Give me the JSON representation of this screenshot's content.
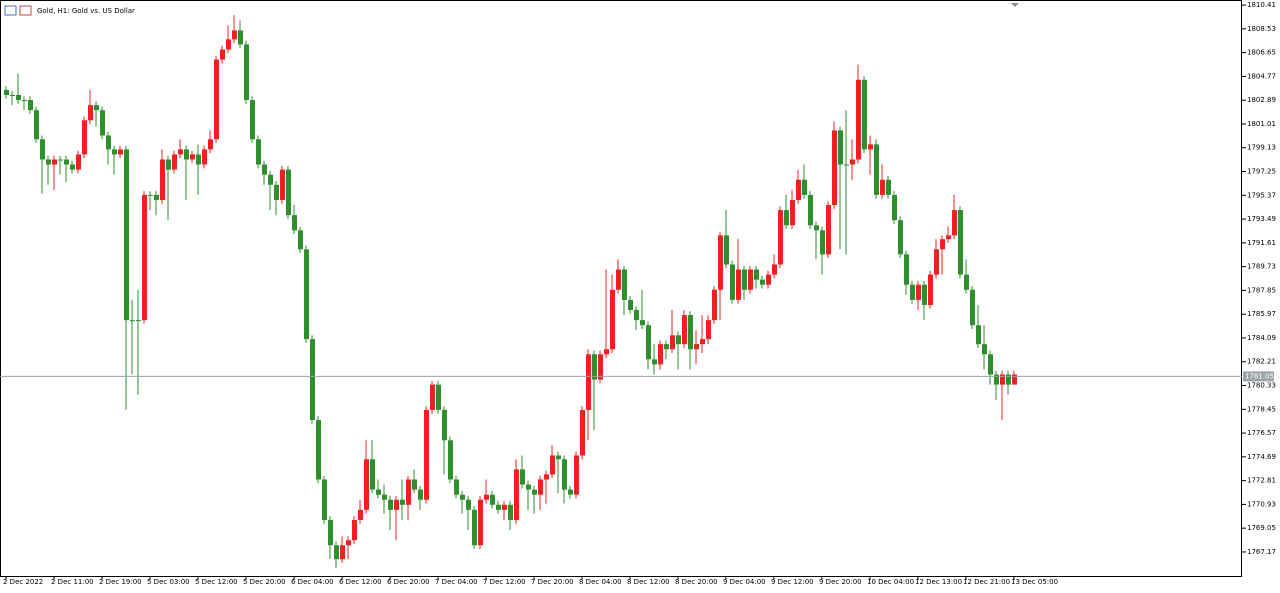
{
  "chart_data": {
    "type": "candlestick",
    "title": "Gold, H1:  Gold vs. US Dollar",
    "up_color": "#ef2020",
    "down_color": "#2f8f2f",
    "grid": false,
    "last_price": 1781.05,
    "ylim": [
      1765.27,
      1810.81
    ],
    "yticks": [
      1810.41,
      1808.53,
      1806.65,
      1804.77,
      1802.89,
      1801.01,
      1799.13,
      1797.25,
      1795.37,
      1793.49,
      1791.61,
      1789.73,
      1787.85,
      1785.97,
      1784.09,
      1782.21,
      1780.33,
      1778.45,
      1776.57,
      1774.69,
      1772.81,
      1770.93,
      1769.05,
      1767.17
    ],
    "categories": [
      "2 Dec 2022",
      null,
      null,
      null,
      null,
      null,
      null,
      null,
      "2 Dec 11:00",
      null,
      null,
      null,
      null,
      null,
      null,
      null,
      "2 Dec 19:00",
      null,
      null,
      null,
      null,
      null,
      null,
      null,
      "5 Dec 03:00",
      null,
      null,
      null,
      null,
      null,
      null,
      null,
      "5 Dec 12:00",
      null,
      null,
      null,
      null,
      null,
      null,
      null,
      "5 Dec 20:00",
      null,
      null,
      null,
      null,
      null,
      null,
      null,
      "6 Dec 04:00",
      null,
      null,
      null,
      null,
      null,
      null,
      null,
      "6 Dec 12:00",
      null,
      null,
      null,
      null,
      null,
      null,
      null,
      "6 Dec 20:00",
      null,
      null,
      null,
      null,
      null,
      null,
      null,
      "7 Dec 04:00",
      null,
      null,
      null,
      null,
      null,
      null,
      null,
      "7 Dec 12:00",
      null,
      null,
      null,
      null,
      null,
      null,
      null,
      "7 Dec 20:00",
      null,
      null,
      null,
      null,
      null,
      null,
      null,
      "8 Dec 04:00",
      null,
      null,
      null,
      null,
      null,
      null,
      null,
      "8 Dec 12:00",
      null,
      null,
      null,
      null,
      null,
      null,
      null,
      "8 Dec 20:00",
      null,
      null,
      null,
      null,
      null,
      null,
      null,
      "9 Dec 04:00",
      null,
      null,
      null,
      null,
      null,
      null,
      null,
      "9 Dec 12:00",
      null,
      null,
      null,
      null,
      null,
      null,
      null,
      "9 Dec 20:00",
      null,
      null,
      null,
      null,
      null,
      null,
      null,
      "10 Dec 04:00",
      null,
      null,
      null,
      null,
      null,
      null,
      null,
      "12 Dec 13:00",
      null,
      null,
      null,
      null,
      null,
      null,
      null,
      "12 Dec 21:00",
      null,
      null,
      null,
      null,
      null,
      null,
      null,
      "13 Dec 05:00"
    ],
    "open": [
      1803.7,
      1803.3,
      1803.3,
      1802.9,
      1802.9,
      1802.1,
      1799.8,
      1798.2,
      1797.8,
      1798.2,
      1798.2,
      1797.8,
      1797.4,
      1798.6,
      1801.3,
      1802.5,
      1802.1,
      1800.1,
      1799.0,
      1798.6,
      1799.0,
      1785.5,
      1785.5,
      1785.5,
      1795.4,
      1795.4,
      1795.0,
      1798.2,
      1797.4,
      1798.6,
      1799.0,
      1798.2,
      1798.6,
      1797.8,
      1799.0,
      1799.8,
      1806.1,
      1806.9,
      1807.7,
      1808.4,
      1807.3,
      1802.9,
      1799.8,
      1797.8,
      1797.0,
      1796.2,
      1795.0,
      1797.4,
      1793.8,
      1792.6,
      1791.1,
      1784.0,
      1777.6,
      1772.9,
      1769.7,
      1767.7,
      1766.6,
      1767.7,
      1768.1,
      1769.7,
      1770.5,
      1774.5,
      1772.1,
      1771.7,
      1771.3,
      1770.5,
      1771.3,
      1770.9,
      1772.9,
      1772.1,
      1771.3,
      1778.4,
      1780.4,
      1778.4,
      1776.0,
      1772.9,
      1771.7,
      1771.3,
      1770.5,
      1767.7,
      1771.3,
      1771.7,
      1770.9,
      1770.5,
      1770.9,
      1769.7,
      1773.7,
      1772.5,
      1772.1,
      1771.7,
      1772.9,
      1773.3,
      1774.8,
      1774.5,
      1772.1,
      1771.7,
      1774.8,
      1778.4,
      1782.8,
      1780.8,
      1782.8,
      1783.2,
      1787.9,
      1789.5,
      1787.1,
      1786.3,
      1785.5,
      1785.1,
      1782.4,
      1782.0,
      1783.6,
      1783.2,
      1784.3,
      1783.6,
      1785.9,
      1783.2,
      1783.6,
      1784.0,
      1785.5,
      1787.9,
      1792.2,
      1789.9,
      1787.1,
      1789.5,
      1787.9,
      1789.5,
      1788.7,
      1788.3,
      1789.1,
      1789.9,
      1794.2,
      1793.0,
      1795.0,
      1796.6,
      1795.4,
      1793.0,
      1792.6,
      1790.7,
      1794.6,
      1800.5,
      1797.8,
      1797.8,
      1798.2,
      1804.5,
      1799.0,
      1799.4,
      1795.4,
      1796.6,
      1795.4,
      1793.4,
      1790.7,
      1788.3,
      1787.1,
      1788.3,
      1786.7,
      1789.1,
      1791.1,
      1791.9,
      1792.2,
      1794.2,
      1789.1,
      1787.9,
      1785.1,
      1783.6,
      1782.8,
      1781.2,
      1780.4,
      1781.2,
      1780.4
    ],
    "high": [
      1804.0,
      1803.6,
      1805.0,
      1803.2,
      1803.2,
      1802.4,
      1800.1,
      1798.5,
      1798.5,
      1798.5,
      1798.5,
      1798.1,
      1798.9,
      1801.6,
      1803.7,
      1802.8,
      1802.4,
      1800.4,
      1799.3,
      1799.3,
      1799.3,
      1787.1,
      1787.9,
      1795.7,
      1795.7,
      1795.7,
      1799.0,
      1798.5,
      1798.9,
      1799.8,
      1799.3,
      1798.9,
      1799.4,
      1799.3,
      1800.5,
      1806.4,
      1807.2,
      1808.8,
      1809.6,
      1809.2,
      1807.6,
      1803.2,
      1800.1,
      1798.1,
      1797.3,
      1796.5,
      1797.7,
      1797.7,
      1794.6,
      1792.9,
      1791.4,
      1784.3,
      1777.9,
      1773.2,
      1770.0,
      1768.0,
      1768.4,
      1768.4,
      1770.0,
      1771.3,
      1776.0,
      1776.0,
      1772.9,
      1772.5,
      1771.6,
      1771.6,
      1772.9,
      1773.2,
      1773.7,
      1772.4,
      1778.7,
      1780.7,
      1780.7,
      1778.7,
      1776.3,
      1773.2,
      1772.0,
      1771.6,
      1770.8,
      1771.6,
      1772.9,
      1772.0,
      1771.2,
      1771.2,
      1771.2,
      1774.5,
      1774.8,
      1772.8,
      1772.4,
      1773.2,
      1773.6,
      1775.6,
      1775.1,
      1774.8,
      1772.4,
      1775.1,
      1778.7,
      1783.2,
      1783.1,
      1783.1,
      1789.5,
      1789.1,
      1790.3,
      1789.8,
      1787.4,
      1786.6,
      1787.9,
      1785.4,
      1783.6,
      1783.9,
      1783.9,
      1786.3,
      1784.6,
      1786.3,
      1786.2,
      1784.7,
      1785.9,
      1785.9,
      1788.2,
      1792.5,
      1794.2,
      1790.2,
      1791.9,
      1789.8,
      1789.8,
      1789.8,
      1789.0,
      1789.4,
      1790.7,
      1794.5,
      1795.4,
      1795.8,
      1797.4,
      1797.8,
      1795.7,
      1793.3,
      1792.9,
      1794.9,
      1801.2,
      1800.8,
      1802.1,
      1799.8,
      1805.7,
      1804.8,
      1800.1,
      1799.8,
      1797.8,
      1796.9,
      1795.7,
      1793.7,
      1791.0,
      1788.6,
      1788.6,
      1788.6,
      1789.4,
      1791.9,
      1792.2,
      1792.9,
      1795.4,
      1794.5,
      1790.3,
      1788.2,
      1786.7,
      1785.1,
      1783.1,
      1781.5,
      1781.5,
      1781.5,
      1781.5
    ],
    "low": [
      1803.0,
      1802.5,
      1802.6,
      1802.1,
      1801.8,
      1799.5,
      1795.5,
      1796.2,
      1795.8,
      1797.0,
      1796.4,
      1797.1,
      1797.1,
      1798.3,
      1801.0,
      1800.8,
      1799.8,
      1797.8,
      1797.0,
      1798.3,
      1778.4,
      1781.2,
      1779.6,
      1785.2,
      1794.2,
      1793.8,
      1794.7,
      1793.4,
      1797.1,
      1798.3,
      1795.0,
      1797.9,
      1795.4,
      1797.5,
      1798.7,
      1799.5,
      1805.8,
      1806.6,
      1807.4,
      1807.0,
      1802.6,
      1799.5,
      1797.5,
      1796.2,
      1794.2,
      1793.8,
      1794.7,
      1793.5,
      1792.3,
      1790.8,
      1783.7,
      1777.3,
      1772.6,
      1769.4,
      1766.6,
      1765.9,
      1766.3,
      1766.6,
      1767.8,
      1769.4,
      1770.2,
      1771.8,
      1771.4,
      1770.2,
      1768.9,
      1768.1,
      1769.7,
      1769.7,
      1771.8,
      1770.5,
      1771.0,
      1778.1,
      1778.1,
      1773.3,
      1772.6,
      1771.4,
      1770.2,
      1768.9,
      1767.4,
      1767.4,
      1771.0,
      1770.6,
      1770.2,
      1769.7,
      1768.9,
      1769.4,
      1772.2,
      1770.5,
      1770.2,
      1770.5,
      1771.0,
      1773.0,
      1771.8,
      1771.0,
      1771.4,
      1771.4,
      1774.5,
      1776.0,
      1776.8,
      1780.5,
      1782.5,
      1782.9,
      1787.6,
      1785.9,
      1786.0,
      1784.7,
      1784.8,
      1781.6,
      1781.2,
      1781.6,
      1782.4,
      1782.9,
      1781.6,
      1783.3,
      1781.6,
      1782.0,
      1782.9,
      1783.6,
      1785.2,
      1785.5,
      1789.6,
      1786.8,
      1786.8,
      1787.1,
      1787.6,
      1788.0,
      1788.0,
      1788.0,
      1788.8,
      1789.6,
      1792.7,
      1792.7,
      1794.7,
      1795.1,
      1792.7,
      1790.3,
      1789.1,
      1790.4,
      1794.3,
      1791.1,
      1790.7,
      1796.6,
      1797.9,
      1798.7,
      1797.0,
      1795.1,
      1795.1,
      1795.1,
      1793.1,
      1790.4,
      1787.5,
      1786.8,
      1786.3,
      1785.5,
      1786.4,
      1788.8,
      1789.1,
      1791.6,
      1791.9,
      1788.8,
      1787.6,
      1784.8,
      1783.3,
      1781.6,
      1780.4,
      1779.2,
      1777.6,
      1779.6,
      1780.7
    ],
    "close": [
      1803.3,
      1803.3,
      1802.9,
      1802.9,
      1802.1,
      1799.8,
      1798.2,
      1797.8,
      1798.2,
      1798.2,
      1797.8,
      1797.4,
      1798.6,
      1801.3,
      1802.5,
      1802.1,
      1800.1,
      1799.0,
      1798.6,
      1799.0,
      1785.5,
      1785.5,
      1785.5,
      1795.4,
      1795.4,
      1795.0,
      1798.2,
      1797.4,
      1798.6,
      1799.0,
      1798.2,
      1798.6,
      1797.8,
      1799.0,
      1799.8,
      1806.1,
      1806.9,
      1807.7,
      1808.4,
      1807.3,
      1802.9,
      1799.8,
      1797.8,
      1797.0,
      1796.2,
      1795.0,
      1797.4,
      1793.8,
      1792.6,
      1791.1,
      1784.0,
      1777.6,
      1772.9,
      1769.7,
      1767.7,
      1766.6,
      1767.7,
      1768.1,
      1769.7,
      1770.5,
      1774.5,
      1772.1,
      1771.7,
      1771.3,
      1770.5,
      1771.3,
      1770.9,
      1772.9,
      1772.1,
      1771.3,
      1778.4,
      1780.4,
      1778.4,
      1776.0,
      1772.9,
      1771.7,
      1771.3,
      1770.5,
      1767.7,
      1771.3,
      1771.7,
      1770.9,
      1770.5,
      1770.9,
      1769.7,
      1773.7,
      1772.5,
      1772.1,
      1771.7,
      1772.9,
      1773.3,
      1774.8,
      1774.5,
      1772.1,
      1771.7,
      1774.8,
      1778.4,
      1782.8,
      1780.8,
      1782.8,
      1783.2,
      1787.9,
      1789.5,
      1787.1,
      1786.3,
      1785.5,
      1785.1,
      1782.4,
      1782.0,
      1783.6,
      1783.2,
      1784.3,
      1783.6,
      1785.9,
      1783.2,
      1783.6,
      1784.0,
      1785.5,
      1787.9,
      1792.2,
      1789.9,
      1787.1,
      1789.5,
      1787.9,
      1789.5,
      1788.7,
      1788.3,
      1789.1,
      1789.9,
      1794.2,
      1793.0,
      1795.0,
      1796.6,
      1795.4,
      1793.0,
      1792.6,
      1790.7,
      1794.6,
      1800.5,
      1797.8,
      1797.8,
      1798.2,
      1804.5,
      1799.0,
      1799.4,
      1795.4,
      1796.6,
      1795.4,
      1793.4,
      1790.7,
      1788.3,
      1787.1,
      1788.3,
      1786.7,
      1789.1,
      1791.1,
      1791.9,
      1792.2,
      1794.2,
      1789.1,
      1787.9,
      1785.1,
      1783.6,
      1782.8,
      1781.2,
      1780.4,
      1781.2,
      1780.4,
      1781.2
    ]
  }
}
